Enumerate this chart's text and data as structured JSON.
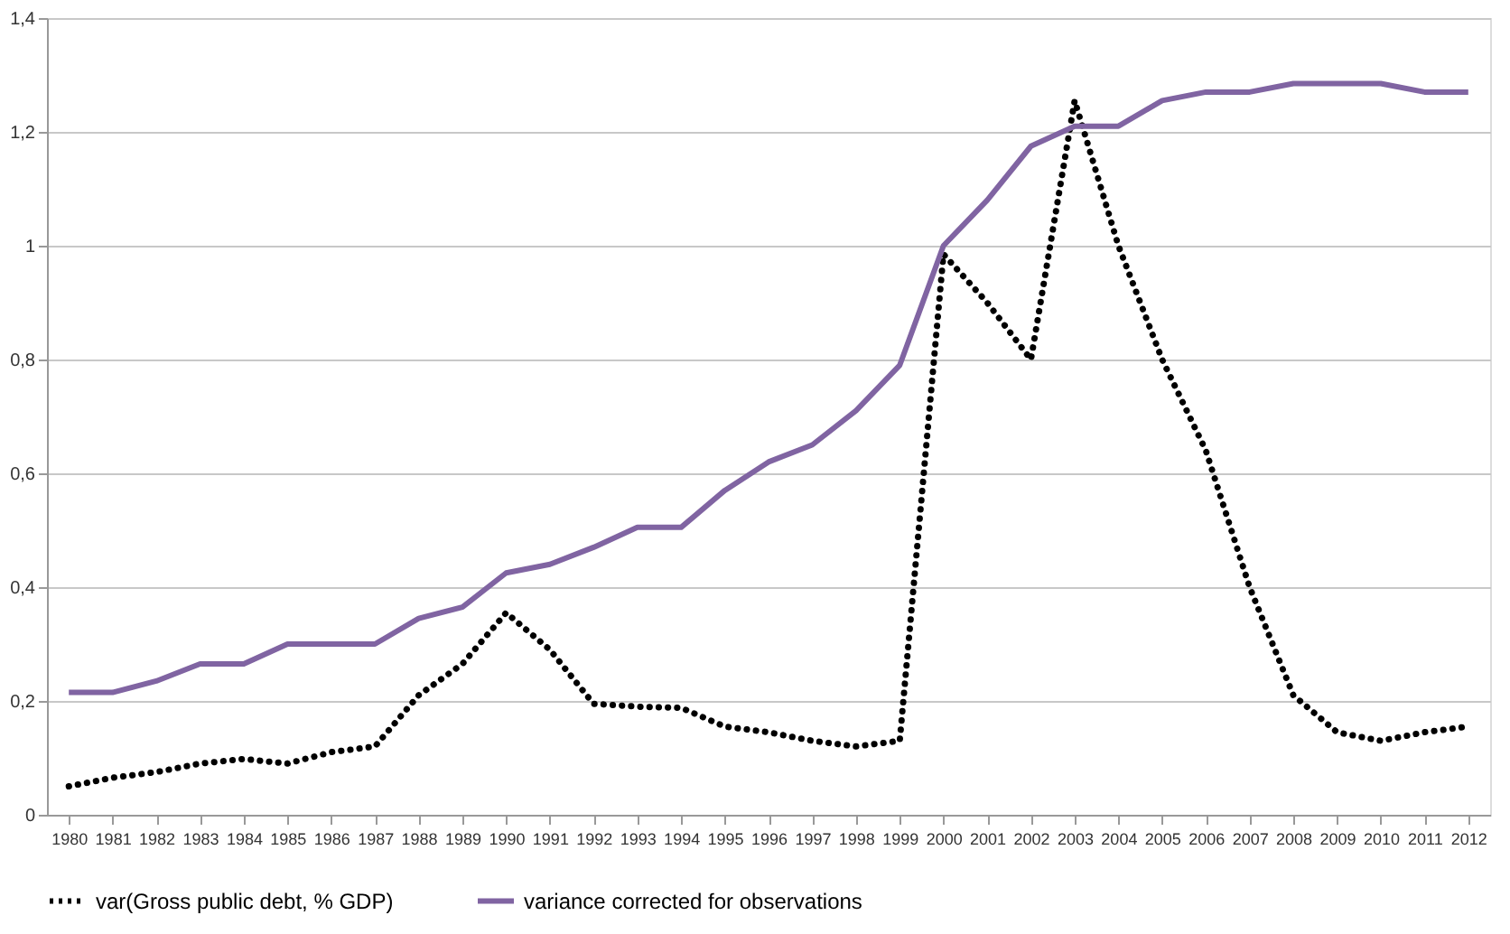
{
  "chart_data": {
    "type": "line",
    "categories": [
      "1980",
      "1981",
      "1982",
      "1983",
      "1984",
      "1985",
      "1986",
      "1987",
      "1988",
      "1989",
      "1990",
      "1991",
      "1992",
      "1993",
      "1994",
      "1995",
      "1996",
      "1997",
      "1998",
      "1999",
      "2000",
      "2001",
      "2002",
      "2003",
      "2004",
      "2005",
      "2006",
      "2007",
      "2008",
      "2009",
      "2010",
      "2011",
      "2012"
    ],
    "series": [
      {
        "name": "var(Gross public debt, % GDP)",
        "color": "#000000",
        "line_style": "dotted",
        "values": [
          0.05,
          0.065,
          0.075,
          0.09,
          0.098,
          0.09,
          0.11,
          0.12,
          0.21,
          0.265,
          0.355,
          0.29,
          0.195,
          0.19,
          0.188,
          0.155,
          0.145,
          0.13,
          0.12,
          0.13,
          0.985,
          0.9,
          0.8,
          1.255,
          1.0,
          0.8,
          0.64,
          0.4,
          0.21,
          0.145,
          0.13,
          0.145,
          0.155
        ]
      },
      {
        "name": "variance corrected for observations",
        "color": "#8064a2",
        "line_style": "solid",
        "values": [
          0.215,
          0.215,
          0.235,
          0.265,
          0.265,
          0.3,
          0.3,
          0.3,
          0.345,
          0.365,
          0.425,
          0.44,
          0.47,
          0.505,
          0.505,
          0.57,
          0.62,
          0.65,
          0.71,
          0.79,
          1.0,
          1.08,
          1.175,
          1.21,
          1.21,
          1.255,
          1.27,
          1.27,
          1.285,
          1.285,
          1.285,
          1.27,
          1.27
        ]
      }
    ],
    "ylim": [
      0,
      1.4
    ],
    "yticks": [
      0,
      {
        "value": 0.2,
        "label": "0,2"
      },
      {
        "value": 0.4,
        "label": "0,4"
      },
      {
        "value": 0.6,
        "label": "0,6"
      },
      {
        "value": 0.8,
        "label": "0,8"
      },
      1,
      {
        "value": 1.2,
        "label": "1,2"
      },
      {
        "value": 1.4,
        "label": "1,4"
      }
    ],
    "grid": "y",
    "legend": "bottom",
    "marker": "none"
  }
}
